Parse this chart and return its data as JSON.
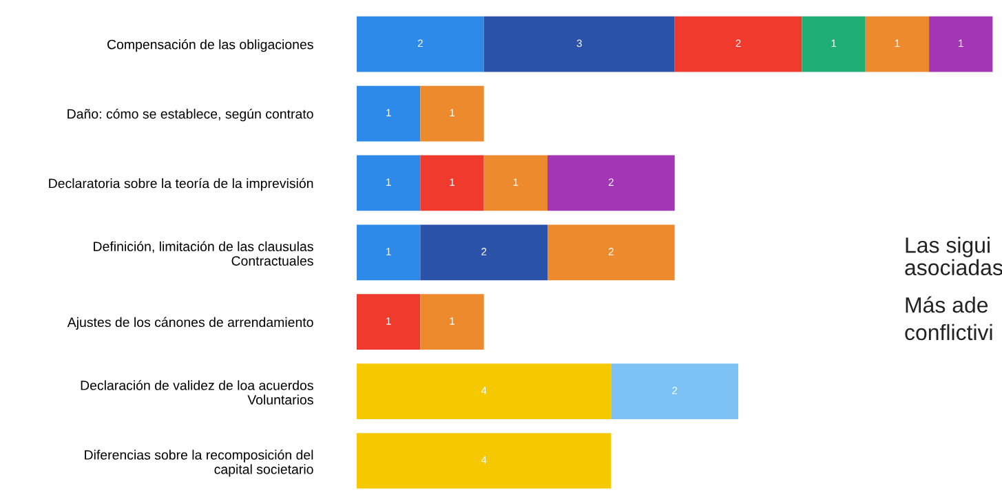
{
  "chart_data": {
    "type": "bar",
    "orientation": "horizontal",
    "stacked": true,
    "data_labels": true,
    "legend": false,
    "grid": false,
    "categories": [
      "Compensación de las obligaciones",
      "Daño: cómo se establece, según contrato",
      "Declaratoria sobre la teoría de la imprevisión",
      "Definición, limitación de las clausulas\nContractuales",
      "Ajustes de los cánones de arrendamiento",
      "Declaración de validez de loa acuerdos\nVoluntarios",
      "Diferencias sobre la recomposición del\ncapital societario"
    ],
    "series": [
      {
        "color": "#2d8ae8",
        "values": [
          2,
          1,
          1,
          1,
          null,
          null,
          null
        ]
      },
      {
        "color": "#2a52a8",
        "values": [
          3,
          null,
          null,
          2,
          null,
          null,
          null
        ]
      },
      {
        "color": "#ef3a2d",
        "values": [
          2,
          null,
          1,
          null,
          1,
          null,
          null
        ]
      },
      {
        "color": "#1fae74",
        "values": [
          1,
          null,
          null,
          null,
          null,
          null,
          null
        ]
      },
      {
        "color": "#ee8a2e",
        "values": [
          1,
          1,
          1,
          2,
          1,
          null,
          null
        ]
      },
      {
        "color": "#a236b4",
        "values": [
          1,
          null,
          2,
          null,
          null,
          null,
          null
        ]
      },
      {
        "color": "#f5c800",
        "values": [
          null,
          null,
          null,
          null,
          null,
          4,
          4
        ]
      },
      {
        "color": "#7cc2f4",
        "values": [
          null,
          null,
          null,
          null,
          null,
          2,
          null
        ]
      }
    ],
    "annotations": [
      "Las sigui",
      "asociadas",
      "Más ade",
      "conflictivi"
    ]
  }
}
